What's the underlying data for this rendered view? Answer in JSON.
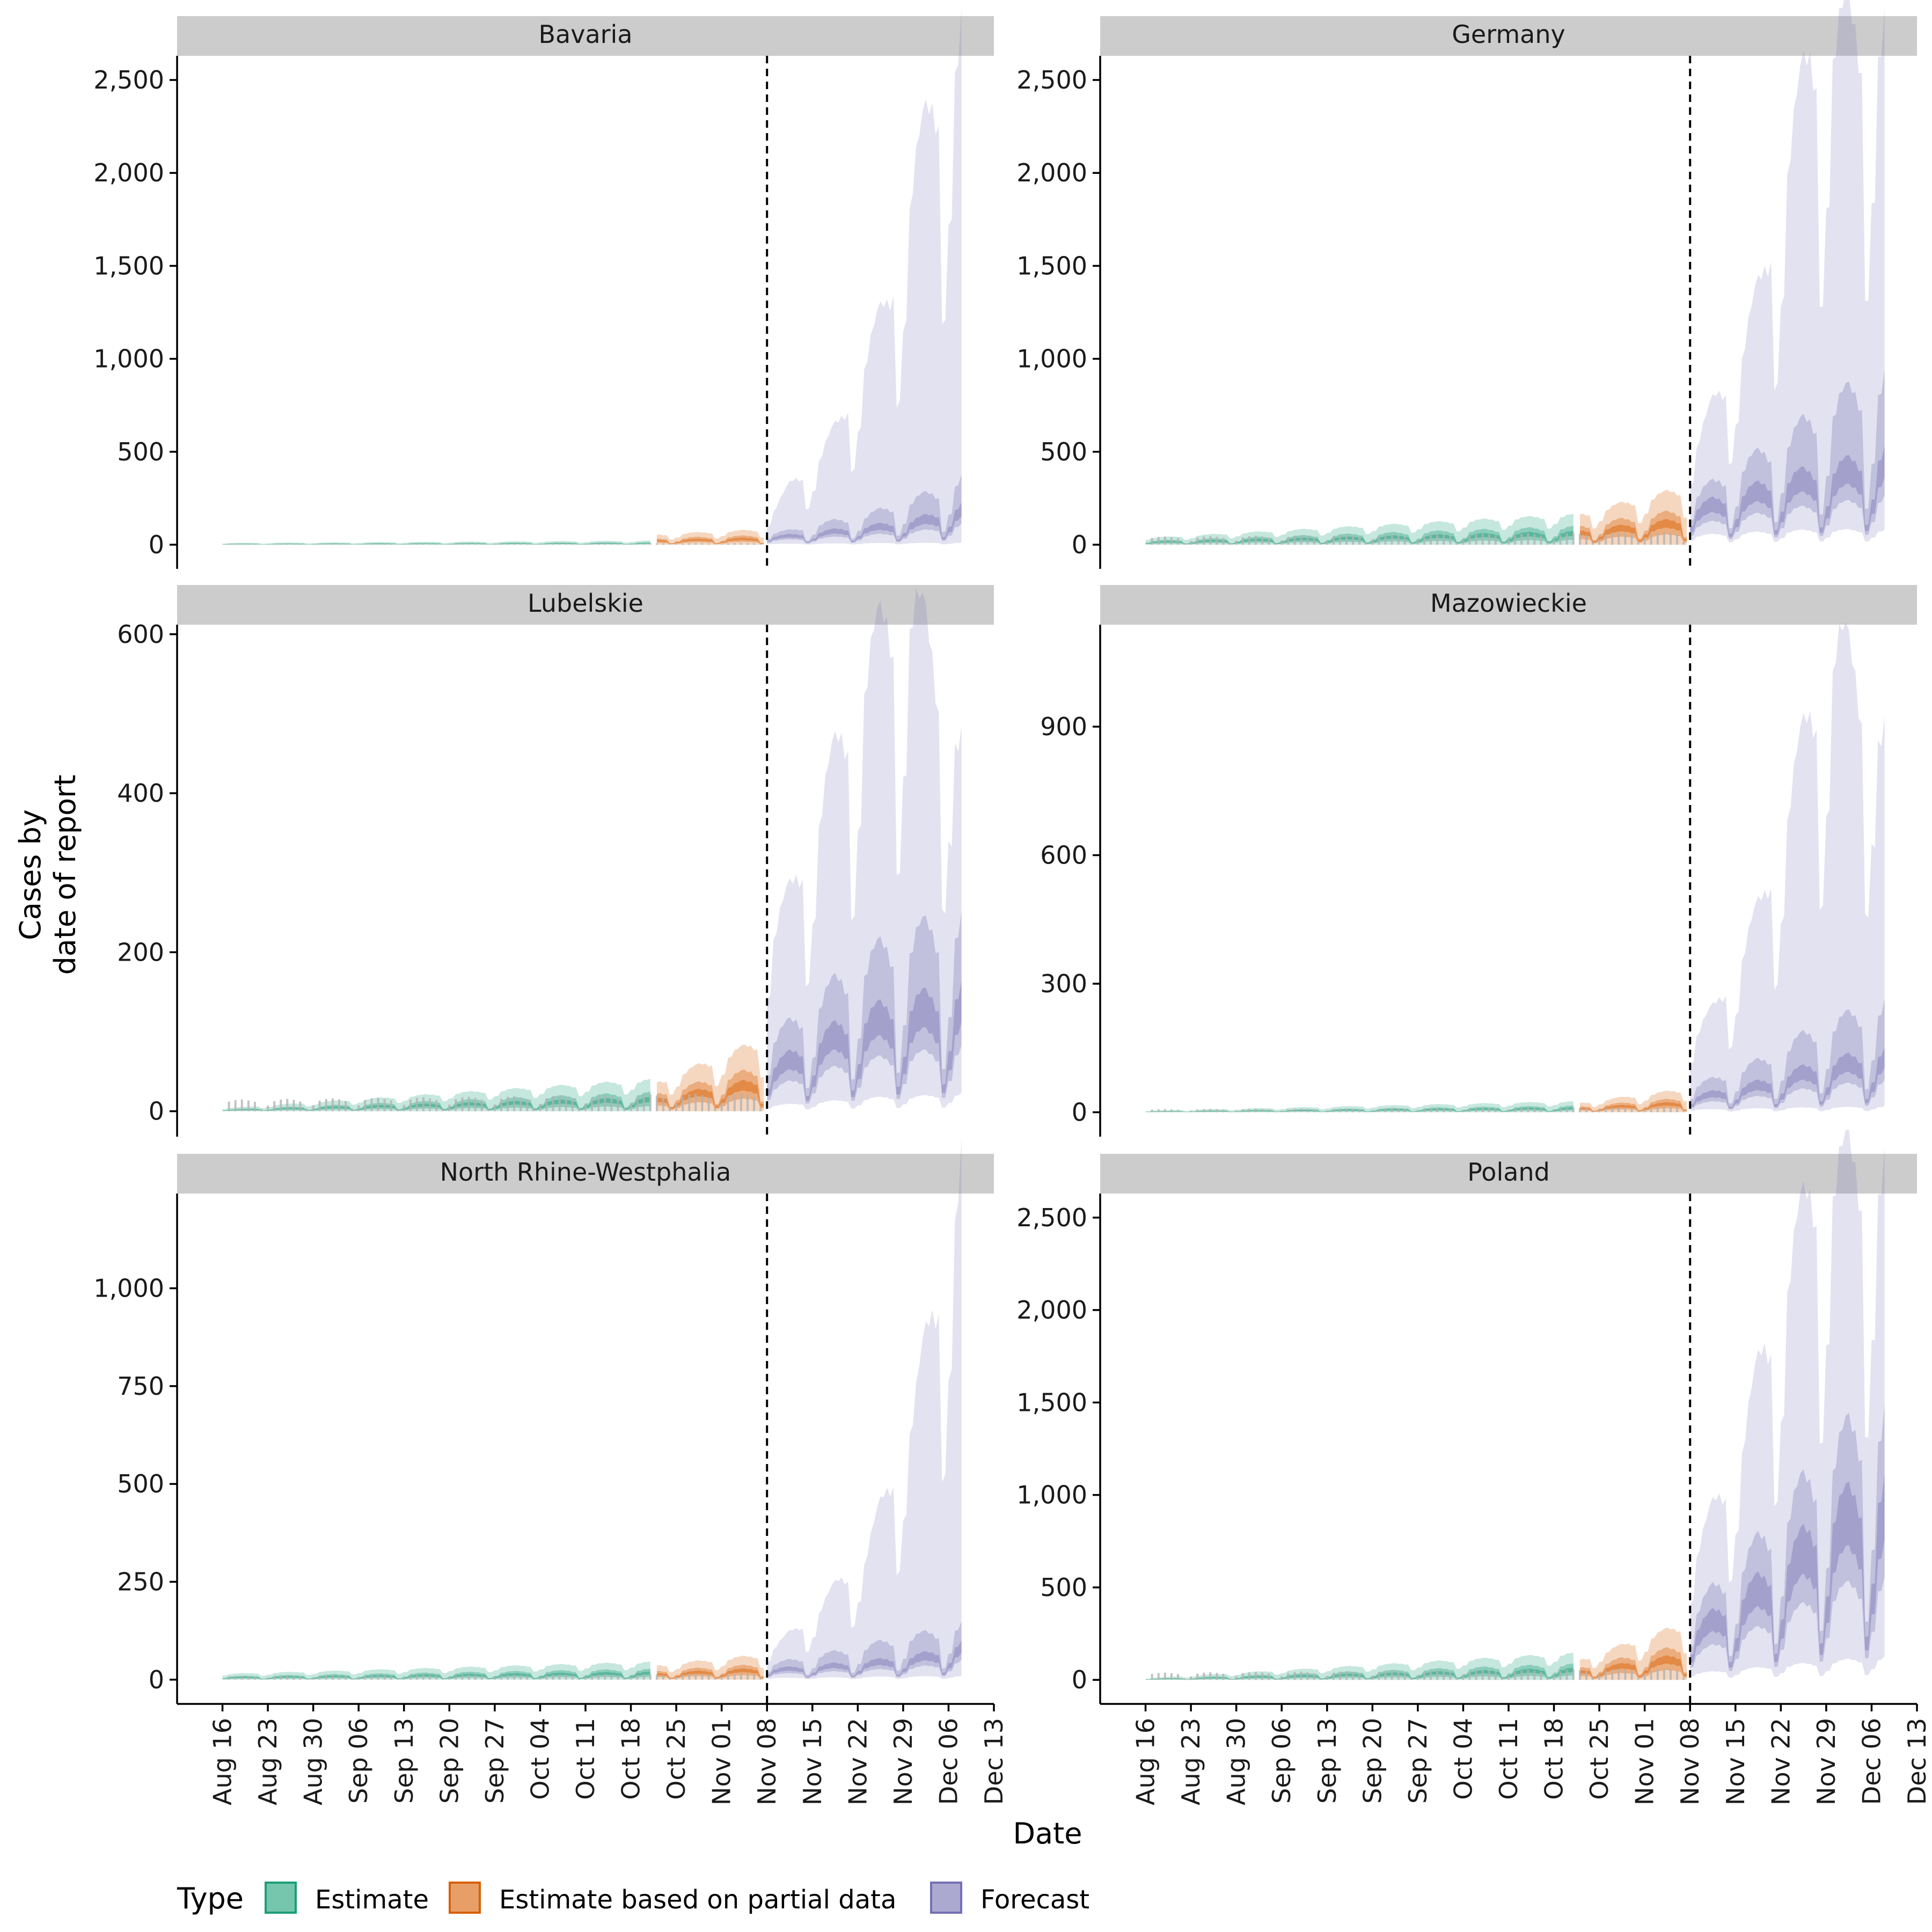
{
  "chart_data": {
    "type": "area",
    "xlabel": "Date",
    "ylabel": "Cases by\ndate of report",
    "x_ticks": [
      "Aug 16",
      "Aug 23",
      "Aug 30",
      "Sep 06",
      "Sep 13",
      "Sep 20",
      "Sep 27",
      "Oct 04",
      "Oct 11",
      "Oct 18",
      "Oct 25",
      "Nov 01",
      "Nov 08",
      "Nov 15",
      "Nov 22",
      "Nov 29",
      "Dec 06",
      "Dec 13"
    ],
    "xlim": [
      "2020-08-09",
      "2020-12-13"
    ],
    "series_start": "2020-08-16",
    "forecast_start": "2020-11-08",
    "partial_start": "2020-10-22",
    "end_date": "2020-12-08",
    "legend": {
      "title": "Type",
      "position": "bottom",
      "entries": [
        {
          "label": "Estimate",
          "color": "#1B9E77"
        },
        {
          "label": "Estimate based on partial data",
          "color": "#D95F02"
        },
        {
          "label": "Forecast",
          "color": "#7570B3"
        }
      ]
    },
    "colors": {
      "estimate": "#1B9E77",
      "partial": "#D95F02",
      "forecast": "#7570B3",
      "strip": "#cccccc",
      "vline": "#000000",
      "bars": "#b3b3b3"
    },
    "panels": [
      {
        "name": "Bavaria",
        "ylim": [
          -130,
          2630
        ],
        "yticks": [
          0,
          500,
          1000,
          1500,
          2000,
          2500
        ],
        "ytick_labels": [
          "0",
          "500",
          "1,000",
          "1,500",
          "2,000",
          "2,500"
        ],
        "estimate_level": [
          5,
          12
        ],
        "partial_level": [
          30,
          45
        ],
        "obs_scale": 12,
        "forecast": {
          "low": [
            4,
            4,
            5,
            6,
            7,
            8,
            8,
            9,
            10
          ],
          "median": [
            35,
            45,
            55,
            70,
            80,
            95,
            110,
            140,
            180
          ],
          "high50": [
            55,
            70,
            100,
            120,
            140,
            180,
            220,
            260,
            330
          ],
          "high90": [
            120,
            300,
            400,
            600,
            900,
            1200,
            1800,
            2200,
            2500
          ]
        }
      },
      {
        "name": "Germany",
        "ylim": [
          -130,
          2630
        ],
        "yticks": [
          0,
          500,
          1000,
          1500,
          2000,
          2500
        ],
        "ytick_labels": [
          "0",
          "500",
          "1,000",
          "1,500",
          "2,000",
          "2,500"
        ],
        "estimate_level": [
          20,
          90
        ],
        "partial_level": [
          90,
          170
        ],
        "obs_scale": 90,
        "forecast": {
          "low": [
            40,
            50,
            55,
            60,
            65,
            70,
            70,
            70,
            70
          ],
          "median": [
            160,
            200,
            230,
            270,
            300,
            330,
            350,
            380,
            420
          ],
          "high50": [
            240,
            300,
            380,
            450,
            520,
            620,
            700,
            760,
            820
          ],
          "high90": [
            420,
            700,
            900,
            1300,
            1900,
            2400,
            2500,
            2500,
            2500
          ]
        }
      },
      {
        "name": "Lubelskie",
        "ylim": [
          -32,
          612
        ],
        "yticks": [
          0,
          200,
          400,
          600
        ],
        "ytick_labels": [
          "0",
          "200",
          "400",
          "600"
        ],
        "estimate_level": [
          2,
          22
        ],
        "partial_level": [
          20,
          50
        ],
        "obs_scale": 30,
        "forecast": {
          "low": [
            6,
            8,
            10,
            12,
            14,
            16,
            16,
            18,
            20
          ],
          "median": [
            45,
            60,
            75,
            90,
            100,
            110,
            115,
            120,
            130
          ],
          "high50": [
            80,
            100,
            125,
            150,
            170,
            190,
            200,
            210,
            220
          ],
          "high90": [
            190,
            250,
            330,
            420,
            500,
            560,
            580,
            500,
            420
          ]
        }
      },
      {
        "name": "Mazowieckie",
        "ylim": [
          -57,
          1138
        ],
        "yticks": [
          0,
          300,
          600,
          900
        ],
        "ytick_labels": [
          "0",
          "300",
          "600",
          "900"
        ],
        "estimate_level": [
          2,
          14
        ],
        "partial_level": [
          12,
          30
        ],
        "obs_scale": 15,
        "forecast": {
          "low": [
            6,
            6,
            7,
            8,
            9,
            10,
            10,
            11,
            12
          ],
          "median": [
            30,
            40,
            50,
            60,
            75,
            90,
            100,
            110,
            120
          ],
          "high50": [
            55,
            70,
            90,
            110,
            140,
            170,
            190,
            210,
            230
          ],
          "high90": [
            150,
            220,
            320,
            450,
            650,
            850,
            1000,
            900,
            800
          ]
        }
      },
      {
        "name": "North Rhine-Westphalia",
        "ylim": [
          -62,
          1242
        ],
        "yticks": [
          0,
          250,
          500,
          750,
          1000
        ],
        "ytick_labels": [
          "0",
          "250",
          "500",
          "750",
          "1,000"
        ],
        "estimate_level": [
          8,
          25
        ],
        "partial_level": [
          20,
          35
        ],
        "obs_scale": 20,
        "forecast": {
          "low": [
            4,
            4,
            5,
            5,
            6,
            7,
            7,
            8,
            8
          ],
          "median": [
            22,
            26,
            30,
            34,
            38,
            44,
            50,
            60,
            80
          ],
          "high50": [
            35,
            45,
            55,
            65,
            75,
            90,
            100,
            110,
            130
          ],
          "high90": [
            60,
            110,
            150,
            230,
            280,
            450,
            620,
            900,
            1200
          ]
        }
      },
      {
        "name": "Poland",
        "ylim": [
          -130,
          2630
        ],
        "yticks": [
          0,
          500,
          1000,
          1500,
          2000,
          2500
        ],
        "ytick_labels": [
          "0",
          "500",
          "1,000",
          "1,500",
          "2,000",
          "2,500"
        ],
        "estimate_level": [
          5,
          80
        ],
        "partial_level": [
          60,
          170
        ],
        "obs_scale": 80,
        "forecast": {
          "low": [
            30,
            40,
            50,
            60,
            70,
            80,
            90,
            100,
            110
          ],
          "median": [
            220,
            300,
            380,
            460,
            560,
            680,
            780,
            840,
            880
          ],
          "high50": [
            320,
            450,
            560,
            700,
            850,
            1000,
            1150,
            1250,
            1300
          ],
          "high90": [
            550,
            850,
            1100,
            1600,
            2000,
            2400,
            2500,
            2500,
            2500
          ]
        }
      }
    ]
  }
}
